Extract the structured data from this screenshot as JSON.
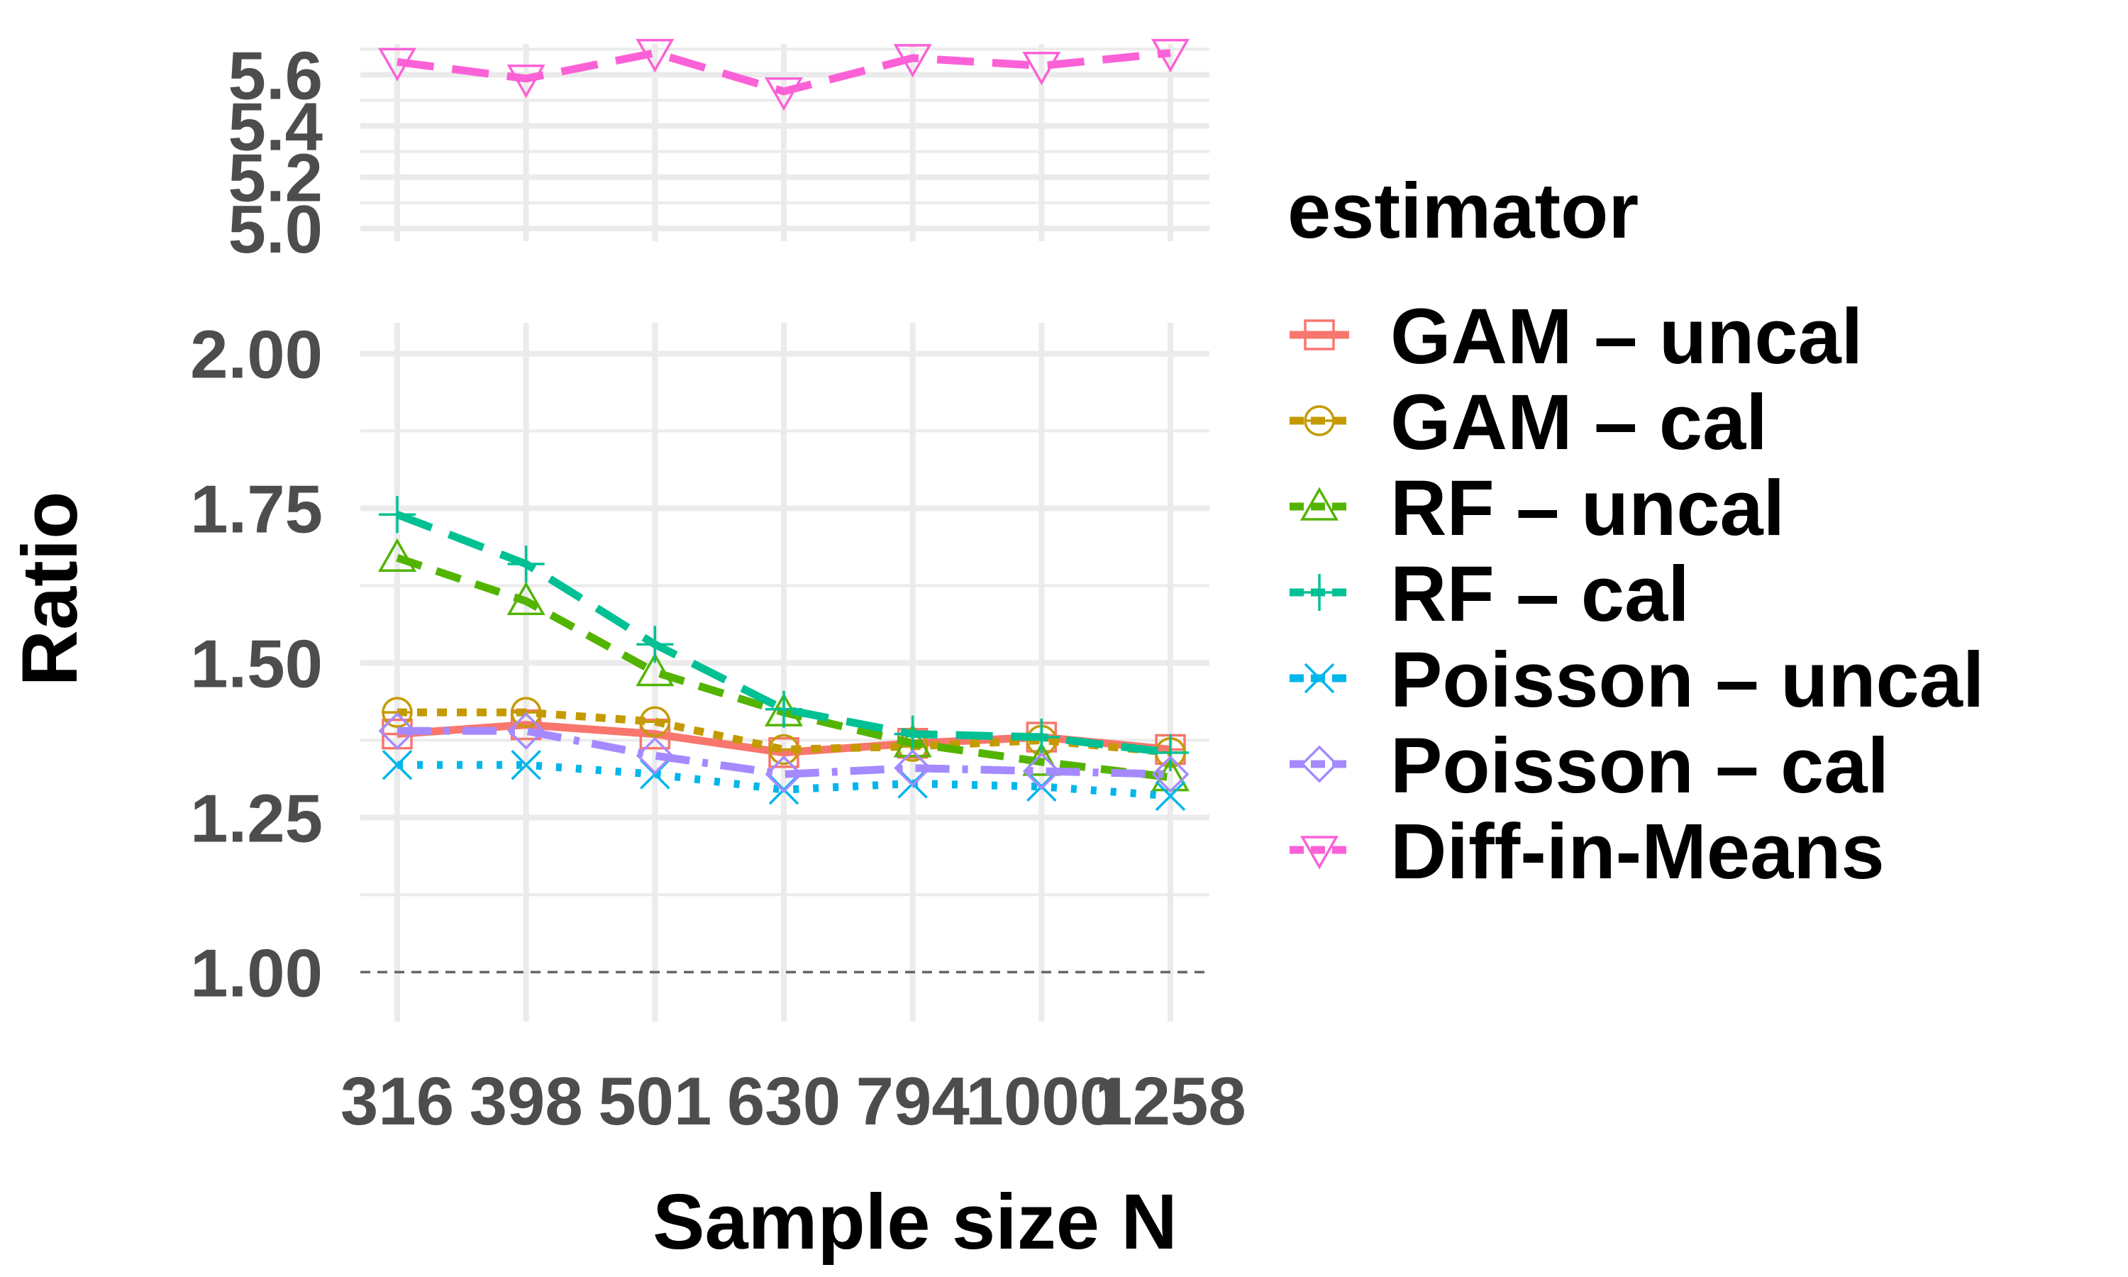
{
  "chart_data": {
    "type": "line",
    "xlabel": "Sample size N",
    "ylabel": "Ratio",
    "x_categories": [
      "316",
      "398",
      "501",
      "630",
      "794",
      "1000",
      "1258"
    ],
    "x_tick_labels": [
      "316",
      "398",
      "501",
      "630",
      "794",
      "1000",
      "1258"
    ],
    "panels": [
      {
        "name": "top",
        "ylim": [
          4.95,
          5.72
        ],
        "y_ticks": [
          5.0,
          5.2,
          5.4,
          5.6
        ],
        "y_tick_labels": [
          "5.0",
          "5.2",
          "5.4",
          "5.6"
        ],
        "series": [
          "Diff-in-Means"
        ]
      },
      {
        "name": "bottom",
        "ylim": [
          0.92,
          2.05
        ],
        "y_ticks": [
          1.0,
          1.25,
          1.5,
          1.75,
          2.0
        ],
        "y_tick_labels": [
          "1.00",
          "1.25",
          "1.50",
          "1.75",
          "2.00"
        ],
        "series": [
          "GAM – uncal",
          "GAM – cal",
          "RF – uncal",
          "RF – cal",
          "Poisson – uncal",
          "Poisson – cal"
        ]
      }
    ],
    "reference_line": {
      "y": 1.0,
      "style": "dashed",
      "color": "#666666"
    },
    "legend": {
      "title": "estimator",
      "position": "right"
    },
    "grid": true,
    "series": [
      {
        "name": "GAM – uncal",
        "color": "#F8766D",
        "marker": "square-minus",
        "dash": "solid",
        "values": [
          1.385,
          1.4,
          1.385,
          1.355,
          1.37,
          1.38,
          1.36
        ]
      },
      {
        "name": "GAM – cal",
        "color": "#C49A00",
        "marker": "circle-minus",
        "dash": "dotted",
        "values": [
          1.42,
          1.42,
          1.405,
          1.36,
          1.365,
          1.375,
          1.355
        ]
      },
      {
        "name": "RF – uncal",
        "color": "#53B400",
        "marker": "triangle",
        "dash": "dashed",
        "values": [
          1.67,
          1.6,
          1.485,
          1.42,
          1.37,
          1.34,
          1.315
        ]
      },
      {
        "name": "RF – cal",
        "color": "#00C094",
        "marker": "plus",
        "dash": "longdash",
        "values": [
          1.74,
          1.66,
          1.53,
          1.425,
          1.385,
          1.38,
          1.355
        ]
      },
      {
        "name": "Poisson – uncal",
        "color": "#00B6EB",
        "marker": "cross",
        "dash": "dot",
        "values": [
          1.335,
          1.335,
          1.32,
          1.295,
          1.305,
          1.3,
          1.285
        ]
      },
      {
        "name": "Poisson – cal",
        "color": "#A58AFF",
        "marker": "diamond",
        "dash": "dashdot",
        "values": [
          1.39,
          1.39,
          1.35,
          1.32,
          1.33,
          1.325,
          1.32
        ]
      },
      {
        "name": "Diff-in-Means",
        "color": "#FB61D7",
        "marker": "triangle-down",
        "dash": "longdash",
        "values": [
          5.65,
          5.585,
          5.685,
          5.535,
          5.665,
          5.635,
          5.685
        ]
      }
    ]
  }
}
